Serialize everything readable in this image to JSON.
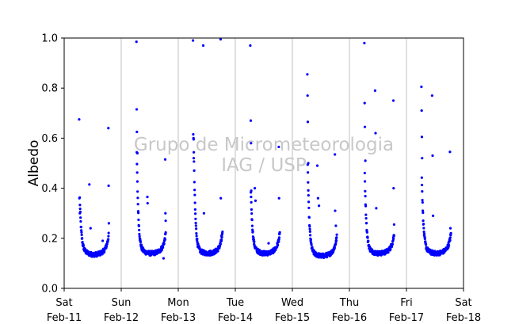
{
  "chart_data": {
    "type": "scatter",
    "title": "",
    "ylabel": "Albedo",
    "xlabel": "",
    "ylim": [
      0,
      1.0
    ],
    "yticks": [
      0.0,
      0.2,
      0.4,
      0.6,
      0.8,
      1.0
    ],
    "xlim": [
      "2023-02-11",
      "2023-02-18"
    ],
    "xticks": [
      {
        "day": "Sat",
        "date": "Feb-11"
      },
      {
        "day": "Sun",
        "date": "Feb-12"
      },
      {
        "day": "Mon",
        "date": "Feb-13"
      },
      {
        "day": "Tue",
        "date": "Feb-14"
      },
      {
        "day": "Wed",
        "date": "Feb-15"
      },
      {
        "day": "Thu",
        "date": "Feb-16"
      },
      {
        "day": "Fri",
        "date": "Feb-17"
      },
      {
        "day": "Sat",
        "date": "Feb-18"
      }
    ],
    "grid": "vertical",
    "series": [
      {
        "color": "#0000ff",
        "days": [
          {
            "date": "2023-02-11",
            "sunrise_hour": 6.3,
            "sunset_hour": 18.8,
            "min": 0.135,
            "start": 0.36,
            "outliers": [
              [
                6.3,
                0.675
              ],
              [
                6.4,
                0.36
              ],
              [
                6.6,
                0.3
              ],
              [
                10.6,
                0.415
              ],
              [
                11.1,
                0.24
              ],
              [
                16.2,
                0.19
              ],
              [
                18.6,
                0.64
              ],
              [
                18.7,
                0.41
              ],
              [
                18.8,
                0.26
              ]
            ]
          },
          {
            "date": "2023-02-12",
            "sunrise_hour": 6.3,
            "sunset_hour": 18.8,
            "min": 0.14,
            "start": 0.54,
            "outliers": [
              [
                6.4,
                0.985
              ],
              [
                6.5,
                0.715
              ],
              [
                6.6,
                0.625
              ],
              [
                6.8,
                0.54
              ],
              [
                11.0,
                0.365
              ],
              [
                11.1,
                0.34
              ],
              [
                17.8,
                0.12
              ],
              [
                18.5,
                0.515
              ],
              [
                18.6,
                0.3
              ],
              [
                18.7,
                0.27
              ]
            ]
          },
          {
            "date": "2023-02-13",
            "sunrise_hour": 6.2,
            "sunset_hour": 18.7,
            "min": 0.14,
            "start": 0.6,
            "outliers": [
              [
                6.2,
                0.99
              ],
              [
                6.3,
                0.615
              ],
              [
                6.4,
                0.6
              ],
              [
                6.5,
                0.52
              ],
              [
                10.5,
                0.97
              ],
              [
                10.8,
                0.3
              ],
              [
                13.5,
                0.15
              ],
              [
                17.8,
                0.995
              ],
              [
                17.9,
                0.36
              ],
              [
                18.2,
                0.21
              ]
            ]
          },
          {
            "date": "2023-02-14",
            "sunrise_hour": 6.3,
            "sunset_hour": 18.8,
            "min": 0.14,
            "start": 0.39,
            "outliers": [
              [
                6.3,
                0.97
              ],
              [
                6.5,
                0.67
              ],
              [
                6.6,
                0.58
              ],
              [
                6.7,
                0.39
              ],
              [
                8.2,
                0.4
              ],
              [
                8.5,
                0.35
              ],
              [
                14.0,
                0.18
              ],
              [
                18.3,
                0.565
              ],
              [
                18.4,
                0.36
              ],
              [
                18.6,
                0.22
              ]
            ]
          },
          {
            "date": "2023-02-15",
            "sunrise_hour": 6.2,
            "sunset_hour": 18.8,
            "min": 0.13,
            "start": 0.5,
            "outliers": [
              [
                6.3,
                0.855
              ],
              [
                6.4,
                0.77
              ],
              [
                6.5,
                0.665
              ],
              [
                6.7,
                0.5
              ],
              [
                10.5,
                0.49
              ],
              [
                10.8,
                0.36
              ],
              [
                11.2,
                0.33
              ],
              [
                17.9,
                0.535
              ],
              [
                18.0,
                0.31
              ],
              [
                18.3,
                0.25
              ]
            ]
          },
          {
            "date": "2023-02-16",
            "sunrise_hour": 6.2,
            "sunset_hour": 18.9,
            "min": 0.14,
            "start": 0.46,
            "outliers": [
              [
                6.3,
                0.98
              ],
              [
                6.4,
                0.74
              ],
              [
                6.5,
                0.645
              ],
              [
                6.7,
                0.51
              ],
              [
                10.8,
                0.79
              ],
              [
                11.0,
                0.62
              ],
              [
                11.3,
                0.32
              ],
              [
                18.5,
                0.75
              ],
              [
                18.6,
                0.4
              ],
              [
                18.8,
                0.255
              ]
            ]
          },
          {
            "date": "2023-02-17",
            "sunrise_hour": 6.2,
            "sunset_hour": 18.8,
            "min": 0.14,
            "start": 0.45,
            "outliers": [
              [
                6.3,
                0.805
              ],
              [
                6.4,
                0.71
              ],
              [
                6.5,
                0.605
              ],
              [
                6.6,
                0.52
              ],
              [
                10.8,
                0.77
              ],
              [
                11.0,
                0.53
              ],
              [
                11.2,
                0.29
              ],
              [
                18.3,
                0.545
              ],
              [
                18.5,
                0.24
              ]
            ]
          }
        ]
      }
    ],
    "watermark": [
      "Grupo de Micrometeorologia",
      "IAG / USP"
    ]
  }
}
